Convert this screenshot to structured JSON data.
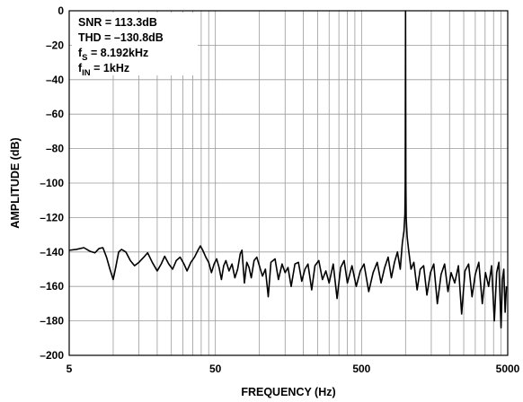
{
  "chart_data": {
    "type": "line",
    "title": "",
    "xlabel": "FREQUENCY (Hz)",
    "ylabel": "AMPLITUDE (dB)",
    "x_scale": "log",
    "xlim": [
      5,
      5000
    ],
    "ylim": [
      -200,
      0
    ],
    "x_ticks": [
      5,
      50,
      500,
      5000
    ],
    "y_ticks": [
      0,
      -20,
      -40,
      -60,
      -80,
      -100,
      -120,
      -140,
      -160,
      -180,
      -200
    ],
    "grid": true,
    "annotations": [
      {
        "main": "SNR = 113.3dB",
        "sub": ""
      },
      {
        "main": "THD = –130.8dB",
        "sub": ""
      },
      {
        "main": "f",
        "sub": "S",
        "rest": " = 8.192kHz"
      },
      {
        "main": "f",
        "sub": "IN",
        "rest": " = 1kHz"
      }
    ],
    "series": [
      {
        "points": [
          [
            5.0,
            -139
          ],
          [
            5.6,
            -138.5
          ],
          [
            6.3,
            -137.5
          ],
          [
            6.9,
            -139.5
          ],
          [
            7.5,
            -140.5
          ],
          [
            8.0,
            -138
          ],
          [
            8.5,
            -137.5
          ],
          [
            9.0,
            -143
          ],
          [
            9.5,
            -150
          ],
          [
            10.0,
            -156
          ],
          [
            10.4,
            -149
          ],
          [
            10.9,
            -140
          ],
          [
            11.4,
            -138.5
          ],
          [
            12.2,
            -140
          ],
          [
            13.1,
            -145
          ],
          [
            14.0,
            -148
          ],
          [
            15.0,
            -146
          ],
          [
            16.2,
            -143
          ],
          [
            17.2,
            -140.5
          ],
          [
            18.5,
            -146
          ],
          [
            20.0,
            -151
          ],
          [
            21.3,
            -147
          ],
          [
            22.5,
            -142.5
          ],
          [
            24.0,
            -147
          ],
          [
            25.5,
            -150
          ],
          [
            27.0,
            -145
          ],
          [
            28.7,
            -143
          ],
          [
            30.5,
            -147
          ],
          [
            32.0,
            -151
          ],
          [
            34.0,
            -146
          ],
          [
            36.0,
            -143
          ],
          [
            38.0,
            -139
          ],
          [
            39.5,
            -136.5
          ],
          [
            41.0,
            -139
          ],
          [
            43.0,
            -143
          ],
          [
            45.0,
            -146
          ],
          [
            47.0,
            -152
          ],
          [
            49.0,
            -147
          ],
          [
            51.0,
            -144
          ],
          [
            53.0,
            -149
          ],
          [
            55.0,
            -156
          ],
          [
            57.0,
            -148
          ],
          [
            59.0,
            -145
          ],
          [
            62.0,
            -151
          ],
          [
            65.0,
            -147
          ],
          [
            68.0,
            -155
          ],
          [
            71.0,
            -150
          ],
          [
            74.0,
            -141
          ],
          [
            76.0,
            -139
          ],
          [
            79.0,
            -158
          ],
          [
            82.0,
            -146
          ],
          [
            85.0,
            -149
          ],
          [
            88.0,
            -155
          ],
          [
            92.0,
            -145
          ],
          [
            96.0,
            -143
          ],
          [
            100.0,
            -148
          ],
          [
            105.0,
            -154
          ],
          [
            110.0,
            -150
          ],
          [
            115.0,
            -166
          ],
          [
            120.0,
            -146
          ],
          [
            128.0,
            -144
          ],
          [
            135.0,
            -156
          ],
          [
            143.0,
            -147
          ],
          [
            150.0,
            -152
          ],
          [
            157.0,
            -149
          ],
          [
            165.0,
            -160
          ],
          [
            175.0,
            -147
          ],
          [
            185.0,
            -146
          ],
          [
            195.0,
            -157
          ],
          [
            205.0,
            -150
          ],
          [
            215.0,
            -147
          ],
          [
            228.0,
            -162
          ],
          [
            240.0,
            -148
          ],
          [
            255.0,
            -145
          ],
          [
            270.0,
            -156
          ],
          [
            285.0,
            -151
          ],
          [
            300.0,
            -158
          ],
          [
            320.0,
            -147
          ],
          [
            340.0,
            -167
          ],
          [
            360.0,
            -149
          ],
          [
            380.0,
            -145
          ],
          [
            400.0,
            -158
          ],
          [
            430.0,
            -148
          ],
          [
            460.0,
            -160
          ],
          [
            490.0,
            -151
          ],
          [
            520.0,
            -147
          ],
          [
            560.0,
            -163
          ],
          [
            600.0,
            -152
          ],
          [
            640.0,
            -146
          ],
          [
            680.0,
            -158
          ],
          [
            720.0,
            -149
          ],
          [
            760.0,
            -143
          ],
          [
            800.0,
            -155
          ],
          [
            840.0,
            -146
          ],
          [
            880.0,
            -140
          ],
          [
            920.0,
            -150
          ],
          [
            950.0,
            -135
          ],
          [
            975.0,
            -128
          ],
          [
            990.0,
            -118
          ],
          [
            995.0,
            -100
          ],
          [
            998.0,
            -40
          ],
          [
            1000.0,
            0
          ],
          [
            1002.0,
            -40
          ],
          [
            1005.0,
            -100
          ],
          [
            1010.0,
            -120
          ],
          [
            1025.0,
            -131
          ],
          [
            1050.0,
            -139
          ],
          [
            1090.0,
            -150
          ],
          [
            1140.0,
            -146
          ],
          [
            1200.0,
            -162
          ],
          [
            1260.0,
            -150
          ],
          [
            1330.0,
            -148
          ],
          [
            1400.0,
            -165
          ],
          [
            1480.0,
            -152
          ],
          [
            1560.0,
            -147
          ],
          [
            1650.0,
            -170
          ],
          [
            1750.0,
            -153
          ],
          [
            1850.0,
            -147
          ],
          [
            1950.0,
            -163
          ],
          [
            2050.0,
            -152
          ],
          [
            2170.0,
            -158
          ],
          [
            2300.0,
            -148
          ],
          [
            2420.0,
            -176
          ],
          [
            2550.0,
            -151
          ],
          [
            2700.0,
            -147
          ],
          [
            2850.0,
            -166
          ],
          [
            3000.0,
            -153
          ],
          [
            3170.0,
            -146
          ],
          [
            3350.0,
            -170
          ],
          [
            3520.0,
            -152
          ],
          [
            3700.0,
            -160
          ],
          [
            3880.0,
            -148
          ],
          [
            4050.0,
            -180
          ],
          [
            4200.0,
            -152
          ],
          [
            4350.0,
            -146
          ],
          [
            4500.0,
            -184
          ],
          [
            4600.0,
            -156
          ],
          [
            4700.0,
            -150
          ],
          [
            4800.0,
            -175
          ],
          [
            4900.0,
            -160
          ]
        ]
      }
    ]
  }
}
